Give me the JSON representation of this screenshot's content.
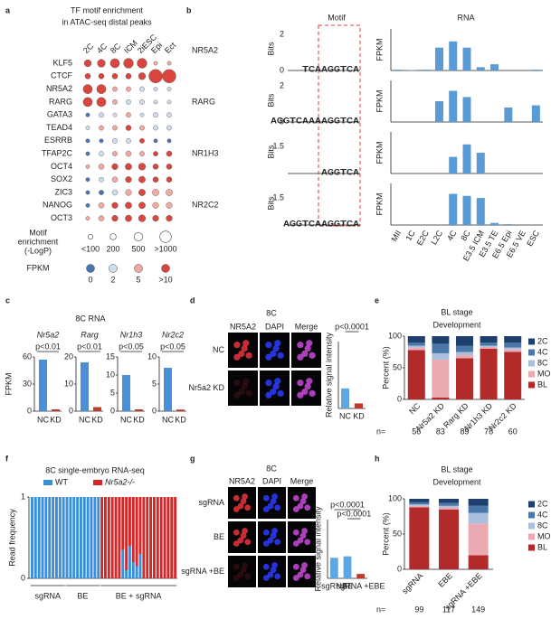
{
  "panel_labels": [
    "a",
    "b",
    "c",
    "d",
    "e",
    "f",
    "g",
    "h"
  ],
  "chart_data": [
    {
      "type": "dot_matrix",
      "title": [
        "TF motif enrichment",
        "in ATAC-seq distal peaks"
      ],
      "columns": [
        "2C",
        "4C",
        "8C",
        "ICM",
        "2iESC",
        "Epi",
        "Ect"
      ],
      "rows": [
        "KLF5",
        "CTCF",
        "NR5A2",
        "RARG",
        "GATA3",
        "TEAD4",
        "ESRRB",
        "TFAP2C",
        "OCT4",
        "SOX2",
        "ZIC3",
        "NANOG",
        "OCT3"
      ],
      "highlight_rows": [
        "NR5A2",
        "RARG"
      ],
      "highlight_color": "#d62728",
      "sizes": [
        [
          300,
          400,
          600,
          700,
          700,
          50,
          50
        ],
        [
          150,
          150,
          150,
          150,
          300,
          1500,
          1500
        ],
        [
          600,
          600,
          100,
          100,
          100,
          50,
          50
        ],
        [
          600,
          600,
          100,
          100,
          100,
          50,
          50
        ],
        [
          50,
          100,
          50,
          100,
          50,
          100,
          100
        ],
        [
          50,
          100,
          100,
          150,
          100,
          100,
          100
        ],
        [
          50,
          50,
          100,
          100,
          100,
          50,
          50
        ],
        [
          50,
          100,
          100,
          150,
          100,
          100,
          150
        ],
        [
          50,
          150,
          200,
          250,
          300,
          150,
          150
        ],
        [
          50,
          100,
          150,
          200,
          250,
          150,
          150
        ],
        [
          50,
          100,
          150,
          200,
          250,
          250,
          250
        ],
        [
          50,
          150,
          200,
          250,
          250,
          200,
          200
        ],
        [
          50,
          150,
          200,
          250,
          300,
          200,
          200
        ]
      ],
      "fpkm": [
        [
          10,
          10,
          10,
          10,
          10,
          5,
          5
        ],
        [
          10,
          10,
          10,
          10,
          10,
          10,
          10
        ],
        [
          10,
          10,
          5,
          5,
          2,
          2,
          2
        ],
        [
          10,
          10,
          5,
          2,
          2,
          2,
          2
        ],
        [
          0,
          2,
          2,
          5,
          2,
          2,
          2
        ],
        [
          2,
          5,
          5,
          10,
          5,
          2,
          2
        ],
        [
          0,
          0,
          2,
          2,
          10,
          0,
          0
        ],
        [
          0,
          2,
          5,
          5,
          5,
          10,
          10
        ],
        [
          5,
          5,
          10,
          10,
          10,
          10,
          10
        ],
        [
          0,
          2,
          5,
          10,
          10,
          10,
          10
        ],
        [
          0,
          0,
          2,
          5,
          10,
          5,
          5
        ],
        [
          0,
          5,
          10,
          10,
          10,
          5,
          5
        ],
        [
          5,
          5,
          10,
          10,
          10,
          10,
          10
        ]
      ],
      "size_legend": {
        "label": [
          "Motif",
          "enrichment",
          "(-LogP)"
        ],
        "ticks": [
          {
            "value": 100,
            "label": "<100"
          },
          200,
          500,
          {
            "value": 1000,
            "label": ">1000"
          }
        ]
      },
      "color_legend": {
        "label": "FPKM",
        "ticks": [
          0,
          2,
          5,
          {
            "value": 10,
            "label": ">10"
          }
        ],
        "colors": [
          "#4a74b4",
          "#cfdcec",
          "#f0aaa3",
          "#d9463e"
        ]
      }
    },
    {
      "type": "motif_rna",
      "headers": {
        "motif": "Motif",
        "rna": "RNA"
      },
      "bits_label": "Bits",
      "ylabel": "FPKM",
      "color": "#5b9bd5",
      "categories": [
        "MII",
        "1C",
        "E2C",
        "L2C",
        "4C",
        "8C",
        "E3.5 ICM",
        "E3.5 TE",
        "E6.5 Epi",
        "E6.5 VE",
        "ESC"
      ],
      "ylim": [
        0,
        100
      ],
      "rows": [
        {
          "name": "NR5A2",
          "bits_lim": [
            0,
            2
          ],
          "bits_ticks": [
            0,
            2
          ],
          "logo": [
            "T",
            "C",
            "A",
            "A",
            "G",
            "G",
            "T",
            "C",
            "A"
          ],
          "values": [
            2,
            1,
            2,
            55,
            70,
            55,
            8,
            15,
            0,
            0,
            2
          ]
        },
        {
          "name": "RARG",
          "bits_lim": [
            0,
            2
          ],
          "bits_ticks": [
            0,
            2
          ],
          "logo": [
            "A",
            "G",
            "G",
            "T",
            "C",
            "A",
            "A",
            "A",
            "A",
            "G",
            "G",
            "T",
            "C",
            "A"
          ],
          "values": [
            0,
            0,
            0,
            50,
            75,
            60,
            0,
            0,
            35,
            0,
            40
          ]
        },
        {
          "name": "NR1H3",
          "bits_lim": [
            0,
            2
          ],
          "bits_ticks": [
            1.5
          ],
          "logo": [
            "A",
            "G",
            "G",
            "T",
            "C",
            "A"
          ],
          "values": [
            0,
            0,
            0,
            0,
            40,
            70,
            50,
            0,
            0,
            0,
            0
          ]
        },
        {
          "name": "NR2C2",
          "bits_lim": [
            0,
            2
          ],
          "bits_ticks": [
            1.5
          ],
          "logo": [
            "A",
            "G",
            "G",
            "T",
            "C",
            "A",
            "A",
            "G",
            "G",
            "T",
            "C",
            "A"
          ],
          "values": [
            0,
            0,
            0,
            0,
            75,
            70,
            65,
            5,
            2,
            0,
            0
          ]
        }
      ]
    },
    {
      "type": "gene_bars",
      "title": "8C RNA",
      "ylabel": "FPKM",
      "categories": [
        "NC",
        "KD"
      ],
      "colors": [
        "#4a90d9",
        "#c0392b"
      ],
      "genes": [
        {
          "name": "Nr5a2",
          "p": "p<0.01",
          "ylim": [
            0,
            60
          ],
          "yticks": [
            0,
            30,
            60
          ],
          "values": [
            57,
            2
          ]
        },
        {
          "name": "Rarg",
          "p": "p<0.01",
          "ylim": [
            0,
            20
          ],
          "yticks": [
            0,
            10,
            20
          ],
          "values": [
            18,
            1.5
          ]
        },
        {
          "name": "Nr1h3",
          "p": "p<0.05",
          "ylim": [
            0,
            15
          ],
          "yticks": [
            0,
            5,
            10,
            15
          ],
          "values": [
            10,
            0.5
          ]
        },
        {
          "name": "Nr2c2",
          "p": "p<0.05",
          "ylim": [
            0,
            10
          ],
          "yticks": [
            0,
            5,
            10
          ],
          "values": [
            8,
            0.3
          ]
        }
      ]
    },
    {
      "type": "image_bar",
      "title": "8C",
      "channels": [
        "NR5A2",
        "DAPI",
        "Merge"
      ],
      "channel_colors": [
        "#e03c3c",
        "#3a5cff",
        "#222222"
      ],
      "rows": [
        "NC",
        "Nr5a2 KD"
      ],
      "ylabel": "Relative signal intensity",
      "p": [
        "p<0.0001"
      ],
      "categories": [
        "NC",
        "KD"
      ],
      "values": [
        6,
        1.5
      ],
      "ylim": [
        0,
        20
      ],
      "colors": [
        "#5aa9e6",
        "#c0392b"
      ]
    },
    {
      "type": "stacked",
      "title": "BL stage",
      "subtitle": "Development",
      "ylabel": "Percent (%)",
      "ylim": [
        0,
        100
      ],
      "yticks": [
        0,
        50,
        100
      ],
      "categories": [
        "NC",
        "Nr5a2 KD",
        "Rarg KD",
        "Nr1h3 KD",
        "Nr2c2 KD"
      ],
      "series": [
        {
          "name": "2C",
          "color": "#1d3f6e",
          "values": [
            10,
            12,
            15,
            10,
            10
          ]
        },
        {
          "name": "4C",
          "color": "#4a77a8",
          "values": [
            5,
            15,
            10,
            5,
            8
          ]
        },
        {
          "name": "8C",
          "color": "#a9c0dd",
          "values": [
            3,
            10,
            5,
            2,
            3
          ]
        },
        {
          "name": "MO",
          "color": "#eba9b1",
          "values": [
            4,
            60,
            5,
            3,
            4
          ]
        },
        {
          "name": "BL",
          "color": "#b22a2a",
          "values": [
            78,
            3,
            65,
            80,
            75
          ]
        }
      ],
      "n_label": "n=",
      "n": [
        56,
        83,
        89,
        78,
        60
      ]
    },
    {
      "type": "embryo_stacked",
      "title": "8C single-embryo RNA-seq",
      "ylabel": "Read frequency",
      "ylim": [
        0,
        1
      ],
      "yticks": [
        0,
        1
      ],
      "groups": [
        "sgRNA",
        "BE",
        "BE + sgRNA"
      ],
      "series": [
        {
          "name": "WT",
          "color": "#3a8fd9",
          "values": [
            1,
            1,
            1,
            1,
            1,
            1,
            1,
            1,
            1,
            1,
            1,
            1,
            1,
            1,
            1,
            1,
            1,
            1,
            1,
            1,
            0,
            0,
            0,
            0,
            0,
            0,
            0.35,
            0.1,
            0.4,
            0.2,
            0.15,
            0.3,
            0,
            0,
            0,
            0,
            0,
            0,
            0,
            0,
            0,
            0
          ]
        },
        {
          "name": "Nr5a2-/-",
          "color": "#d62728",
          "values": [
            0,
            0,
            0,
            0,
            0,
            0,
            0,
            0,
            0,
            0,
            0,
            0,
            0,
            0,
            0,
            0,
            0,
            0,
            0,
            0,
            1,
            1,
            1,
            1,
            1,
            1,
            0.65,
            0.9,
            0.6,
            0.8,
            0.85,
            0.7,
            1,
            1,
            1,
            1,
            1,
            1,
            1,
            1,
            1,
            1
          ]
        }
      ]
    },
    {
      "type": "image_bar",
      "title": "8C",
      "channels": [
        "NR5A2",
        "DAPI",
        "Merge"
      ],
      "channel_colors": [
        "#e03c3c",
        "#3a5cff",
        "#222222"
      ],
      "rows": [
        "sgRNA",
        "BE",
        "sgRNA +BE"
      ],
      "ylabel": "Relative signal intensity",
      "p": [
        "p<0.0001",
        "p<0.0001"
      ],
      "categories": [
        "sgRNA",
        "BE",
        "sgRNA +EBE"
      ],
      "values": [
        7,
        7.5,
        1.5
      ],
      "ylim": [
        0,
        20
      ],
      "colors": [
        "#5aa9e6",
        "#5aa9e6",
        "#c0392b"
      ]
    },
    {
      "type": "stacked",
      "title": "BL stage",
      "subtitle": "Development",
      "ylabel": "Percent (%)",
      "ylim": [
        0,
        100
      ],
      "yticks": [
        0,
        50,
        100
      ],
      "categories": [
        "sgRNA",
        "EBE",
        "sgRNA +EBE"
      ],
      "series": [
        {
          "name": "2C",
          "color": "#1d3f6e",
          "values": [
            5,
            6,
            10
          ]
        },
        {
          "name": "4C",
          "color": "#4a77a8",
          "values": [
            3,
            4,
            10
          ]
        },
        {
          "name": "8C",
          "color": "#a9c0dd",
          "values": [
            2,
            2,
            15
          ]
        },
        {
          "name": "MO",
          "color": "#eba9b1",
          "values": [
            2,
            3,
            45
          ]
        },
        {
          "name": "BL",
          "color": "#b22a2a",
          "values": [
            88,
            85,
            20
          ]
        }
      ],
      "n_label": "n=",
      "n": [
        99,
        117,
        149
      ]
    }
  ]
}
